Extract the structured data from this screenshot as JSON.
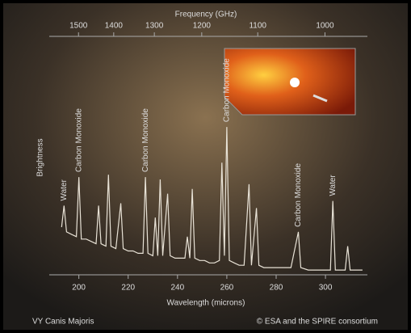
{
  "chart_data": {
    "type": "line",
    "title": "Frequency (GHz)",
    "x_label": "Wavelength (microns)",
    "y_label": "Brightness",
    "xlim": [
      188,
      317
    ],
    "ylim": [
      0,
      100
    ],
    "xticks": [
      200,
      220,
      240,
      260,
      280,
      300
    ],
    "x2ticks": [
      1500,
      1400,
      1300,
      1200,
      1100,
      1000
    ],
    "x": [
      193,
      194,
      195,
      197,
      199,
      200,
      201,
      203,
      205,
      207,
      208,
      209,
      211,
      212,
      213,
      215,
      217,
      218,
      220,
      222,
      224,
      226,
      227,
      228,
      230,
      231,
      232,
      233,
      234,
      236,
      237,
      239,
      241,
      243,
      244,
      245,
      246,
      247,
      249,
      251,
      253,
      255,
      257,
      258,
      259,
      260,
      261,
      263,
      265,
      267,
      269,
      270,
      272,
      273,
      275,
      277,
      280,
      283,
      286,
      289,
      290,
      293,
      296,
      299,
      302,
      303,
      304,
      306,
      308,
      309,
      310,
      312,
      315
    ],
    "series": [
      {
        "color": "#e8e2d6",
        "values": [
          20,
          29,
          18,
          17,
          16,
          41,
          15,
          15,
          14,
          13,
          29,
          13,
          12,
          42,
          12,
          11,
          30,
          11,
          10,
          10,
          9,
          9,
          41,
          9,
          8,
          24,
          8,
          40,
          8,
          34,
          8,
          7,
          7,
          7,
          16,
          7,
          36,
          7,
          6,
          6,
          5,
          5,
          6,
          47,
          8,
          62,
          6,
          5,
          4,
          4,
          38,
          4,
          28,
          4,
          3,
          3,
          3,
          3,
          3,
          18,
          3,
          2,
          2,
          2,
          2,
          31,
          2,
          2,
          2,
          12,
          2,
          2,
          2
        ]
      }
    ],
    "annotations": [
      {
        "text": "Water",
        "x": 194
      },
      {
        "text": "Carbon Monoxide",
        "x": 200
      },
      {
        "text": "Carbon Monoxide",
        "x": 227
      },
      {
        "text": "Carbon Monoxide",
        "x": 260
      },
      {
        "text": "Carbon Monoxide",
        "x": 289
      },
      {
        "text": "Water",
        "x": 303
      }
    ]
  },
  "footer": {
    "left": "VY Canis Majoris",
    "right": "© ESA and the SPIRE consortium"
  }
}
